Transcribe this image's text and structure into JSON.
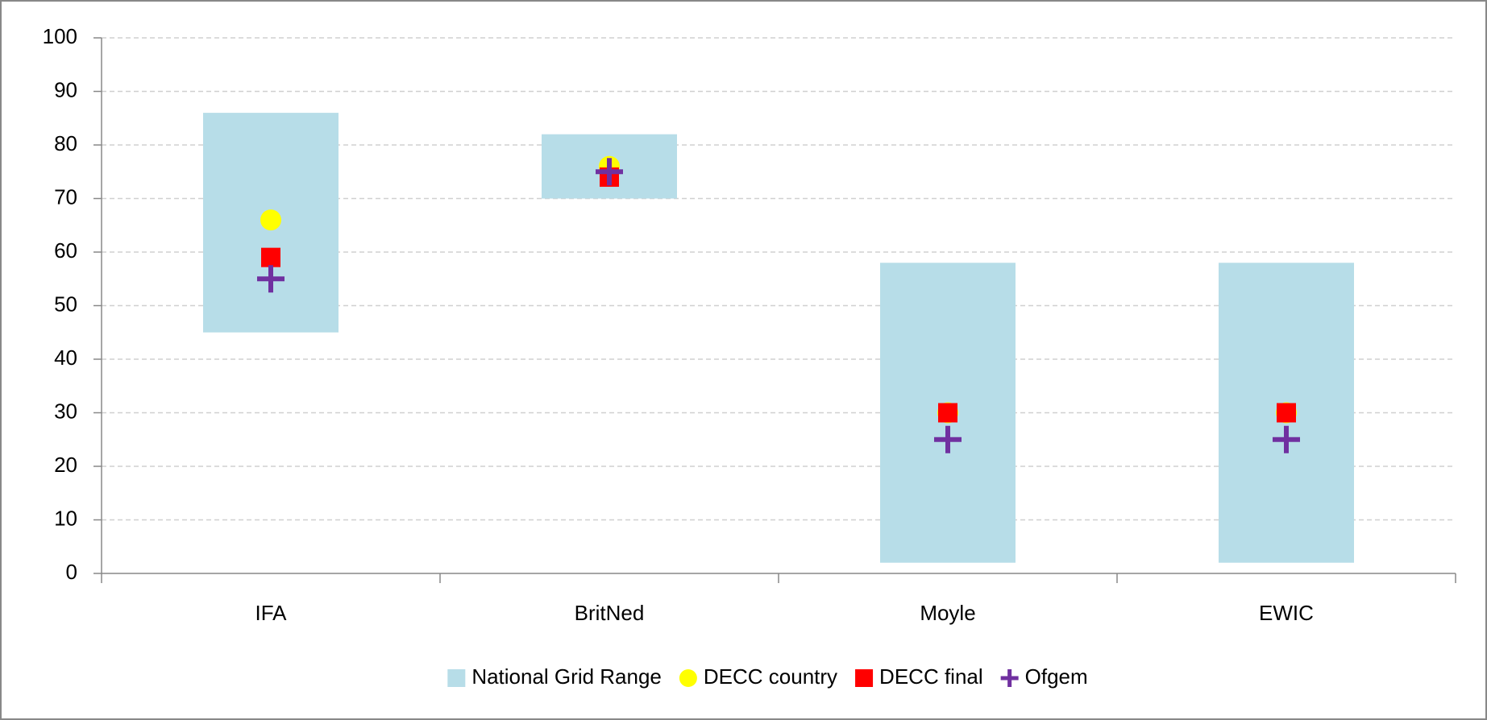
{
  "chart_data": {
    "type": "range",
    "categories": [
      "IFA",
      "BritNed",
      "Moyle",
      "EWIC"
    ],
    "series": [
      {
        "name": "National Grid Range",
        "color": "#b7dde8",
        "marker": "bar",
        "low": [
          45,
          70,
          2,
          2
        ],
        "high": [
          86,
          82,
          58,
          58
        ]
      },
      {
        "name": "DECC country",
        "color": "#ffff00",
        "marker": "circle",
        "values": [
          66,
          76,
          30,
          30
        ]
      },
      {
        "name": "DECC final",
        "color": "#ff0000",
        "marker": "square",
        "values": [
          59,
          74,
          30,
          30
        ]
      },
      {
        "name": "Ofgem",
        "color": "#7030a0",
        "marker": "plus",
        "values": [
          55,
          75,
          25,
          25
        ]
      }
    ],
    "ylim": [
      0,
      100
    ],
    "yticks": [
      0,
      10,
      20,
      30,
      40,
      50,
      60,
      70,
      80,
      90,
      100
    ],
    "grid": true,
    "legend": "bottom"
  }
}
